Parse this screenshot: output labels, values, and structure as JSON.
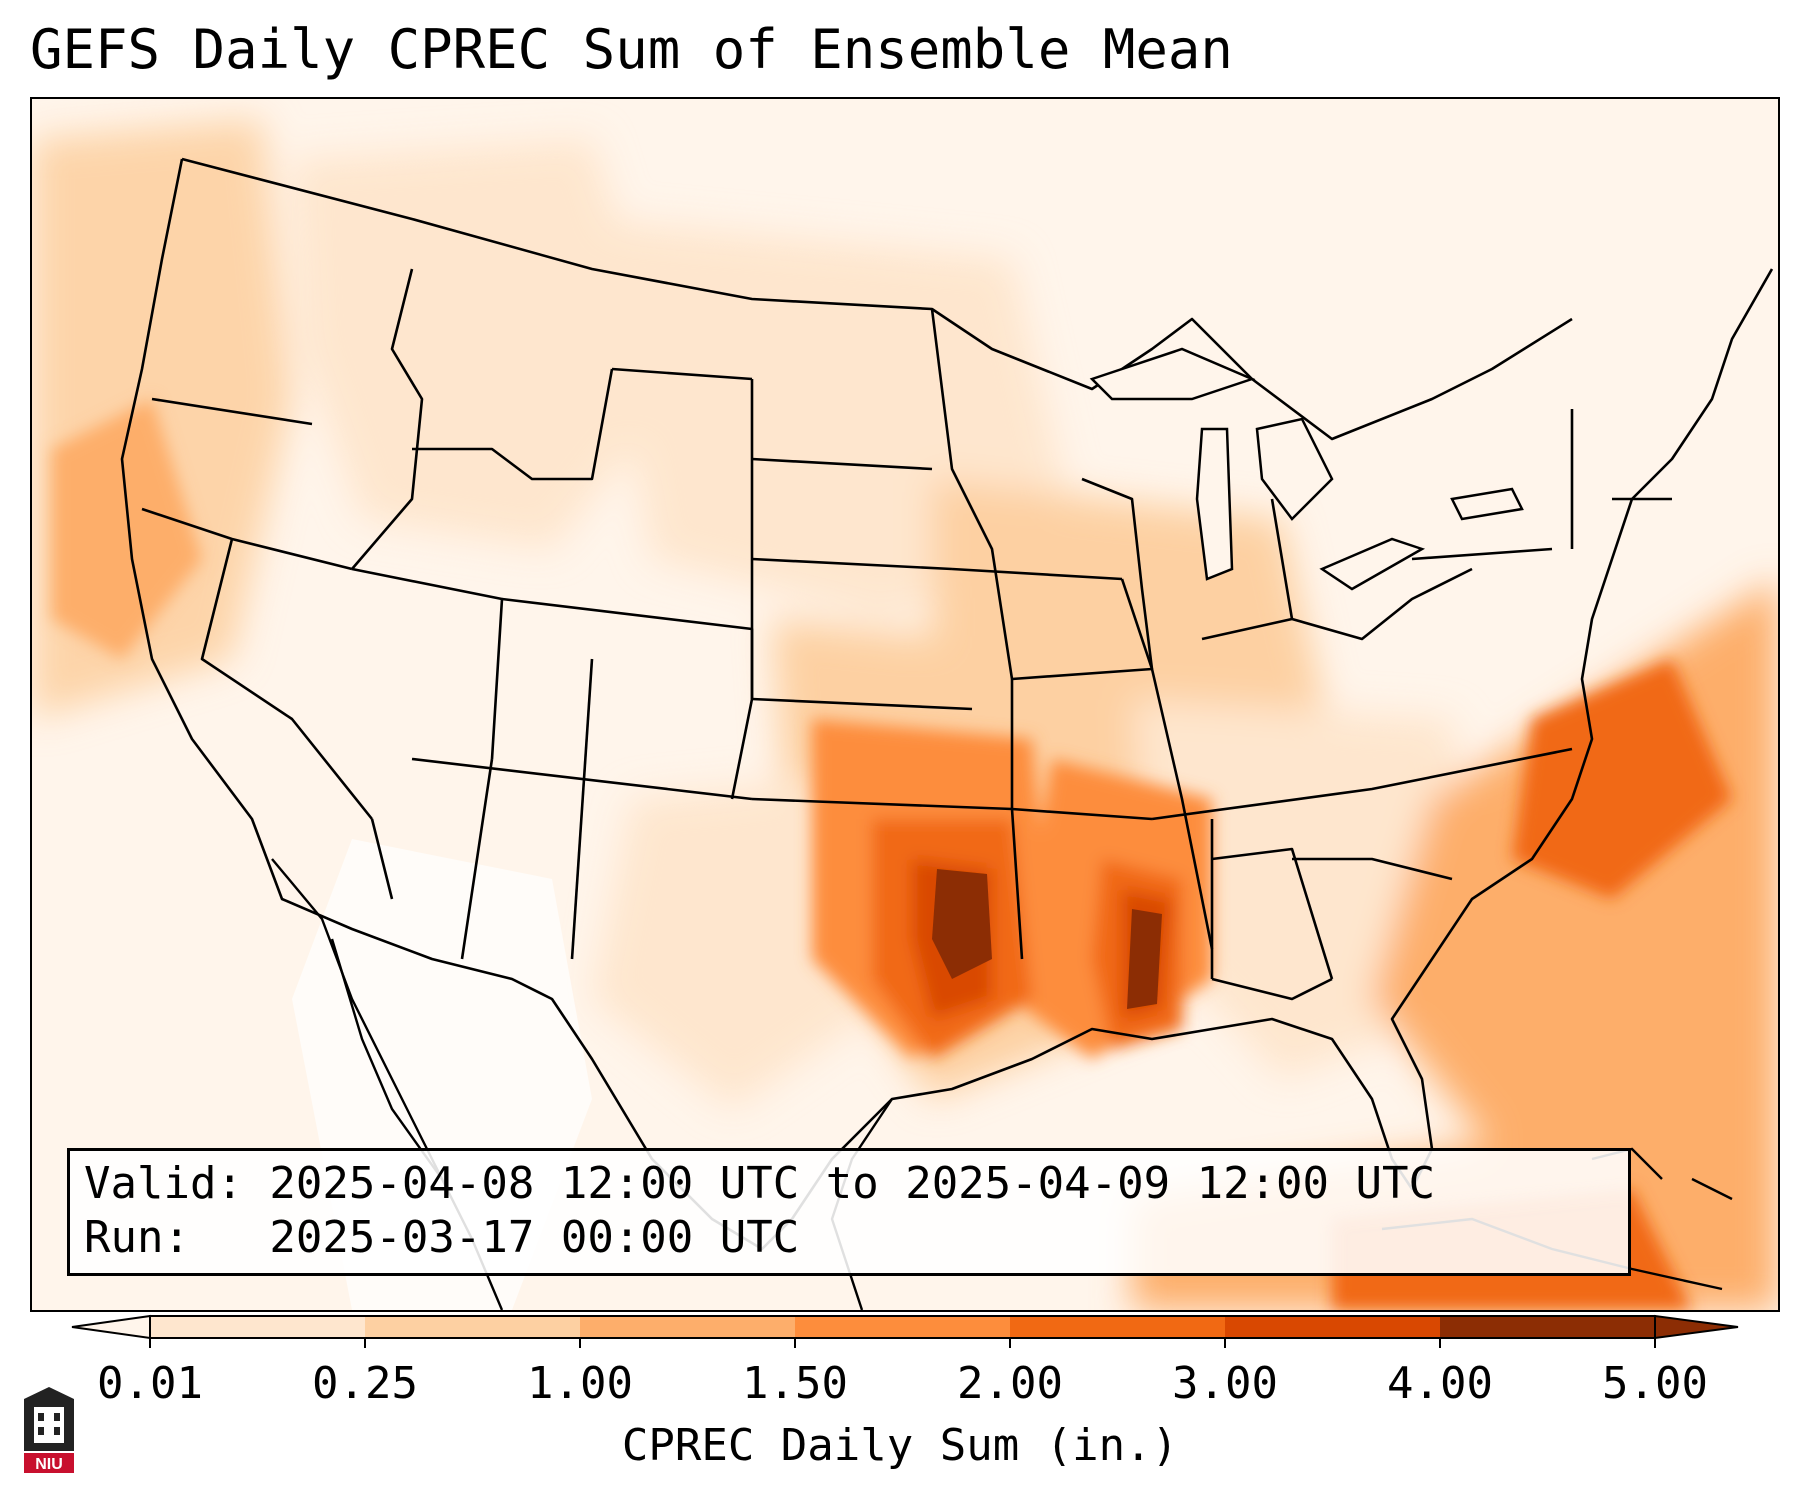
{
  "title": "GEFS Daily CPREC Sum of Ensemble Mean",
  "info": {
    "valid": "Valid: 2025-04-08 12:00 UTC to 2025-04-09 12:00 UTC",
    "run": "Run:   2025-03-17 00:00 UTC"
  },
  "colorbar": {
    "title": "CPREC Daily Sum (in.)",
    "ticks": [
      "0.01",
      "0.25",
      "1.00",
      "1.50",
      "2.00",
      "3.00",
      "4.00",
      "5.00"
    ],
    "colors": [
      "#fff5eb",
      "#fee6ce",
      "#fdd0a2",
      "#fdae6b",
      "#fd8d3c",
      "#f16913",
      "#d94801",
      "#8c2d04"
    ],
    "extend": "both"
  },
  "logo": {
    "text": "NIU",
    "accent": "#c8102e"
  }
}
